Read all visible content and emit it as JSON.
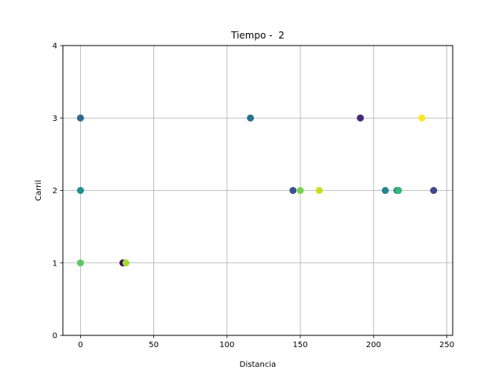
{
  "chart_data": {
    "type": "scatter",
    "title": "Tiempo -  2",
    "xlabel": "Distancia",
    "ylabel": "Carril",
    "xlim": [
      -12,
      254
    ],
    "ylim": [
      0,
      4
    ],
    "xticks": [
      0,
      50,
      100,
      150,
      200,
      250
    ],
    "yticks": [
      0,
      1,
      2,
      3,
      4
    ],
    "grid": true,
    "colormap": "viridis",
    "points": [
      {
        "x": 0,
        "y": 3,
        "color": "#31688e"
      },
      {
        "x": 0,
        "y": 2,
        "color": "#21918c"
      },
      {
        "x": 0,
        "y": 1,
        "color": "#5ec962"
      },
      {
        "x": 29,
        "y": 1,
        "color": "#440154"
      },
      {
        "x": 31,
        "y": 1,
        "color": "#a0da39"
      },
      {
        "x": 116,
        "y": 3,
        "color": "#2c728e"
      },
      {
        "x": 145,
        "y": 2,
        "color": "#3b528b"
      },
      {
        "x": 150,
        "y": 2,
        "color": "#7ad151"
      },
      {
        "x": 163,
        "y": 2,
        "color": "#c8e020"
      },
      {
        "x": 191,
        "y": 3,
        "color": "#482878"
      },
      {
        "x": 208,
        "y": 2,
        "color": "#26828e"
      },
      {
        "x": 216,
        "y": 2,
        "color": "#2a788e"
      },
      {
        "x": 217,
        "y": 2,
        "color": "#35b779"
      },
      {
        "x": 233,
        "y": 3,
        "color": "#fde725"
      },
      {
        "x": 241,
        "y": 2,
        "color": "#3e4989"
      }
    ]
  }
}
